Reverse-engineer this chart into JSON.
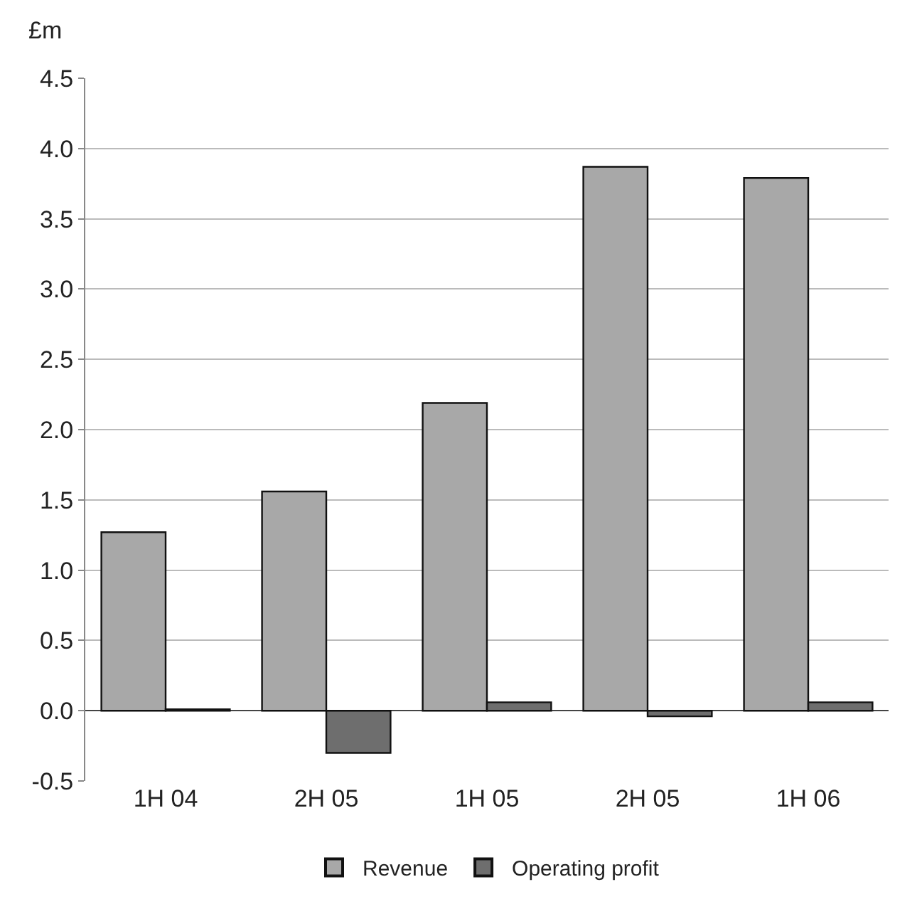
{
  "chart_data": {
    "type": "bar",
    "ylabel": "£m",
    "categories": [
      "1H 04",
      "2H 05",
      "1H 05",
      "2H 05",
      "1H 06"
    ],
    "series": [
      {
        "name": "Revenue",
        "color": "#a8a8a8",
        "values": [
          1.27,
          1.56,
          2.19,
          3.87,
          3.79
        ]
      },
      {
        "name": "Operating profit",
        "color": "#6e6e6e",
        "values": [
          0.01,
          -0.3,
          0.06,
          -0.04,
          0.06
        ]
      }
    ],
    "ylim": [
      -0.5,
      4.5
    ],
    "yticks": [
      {
        "value": -0.5,
        "label": "-0.5"
      },
      {
        "value": 0,
        "label": "0.0"
      },
      {
        "value": 0.5,
        "label": "0.5"
      },
      {
        "value": 1,
        "label": "1.0"
      },
      {
        "value": 1.5,
        "label": "1.5"
      },
      {
        "value": 2,
        "label": "2.0"
      },
      {
        "value": 2.5,
        "label": "2.5"
      },
      {
        "value": 3,
        "label": "3.0"
      },
      {
        "value": 3.5,
        "label": "3.5"
      },
      {
        "value": 4,
        "label": "4.0"
      },
      {
        "value": 4.5,
        "label": "4.5"
      }
    ],
    "grid": "y",
    "legend": "bottom"
  }
}
